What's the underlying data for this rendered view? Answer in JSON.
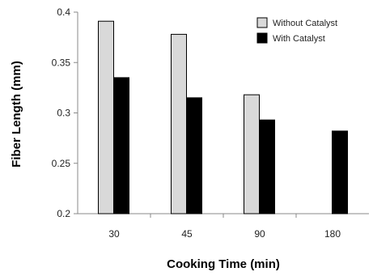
{
  "chart_data": {
    "type": "bar",
    "title": "",
    "xlabel": "Cooking Time  (min)",
    "ylabel": "Fiber Length  (mm)",
    "categories": [
      "30",
      "45",
      "90",
      "180"
    ],
    "ylim": [
      0.2,
      0.4
    ],
    "yticks": [
      0.2,
      0.25,
      0.3,
      0.35,
      0.4
    ],
    "ytick_labels": [
      "0.2",
      "0.25",
      "0.3",
      "0.35",
      "0.4"
    ],
    "grid": false,
    "legend_position": "top-right",
    "series": [
      {
        "name": "Without Catalyst",
        "color": "#d9d9d9",
        "values": [
          0.391,
          0.378,
          0.318,
          null
        ]
      },
      {
        "name": "With Catalyst",
        "color": "#000000",
        "values": [
          0.335,
          0.315,
          0.293,
          0.282
        ]
      }
    ]
  }
}
